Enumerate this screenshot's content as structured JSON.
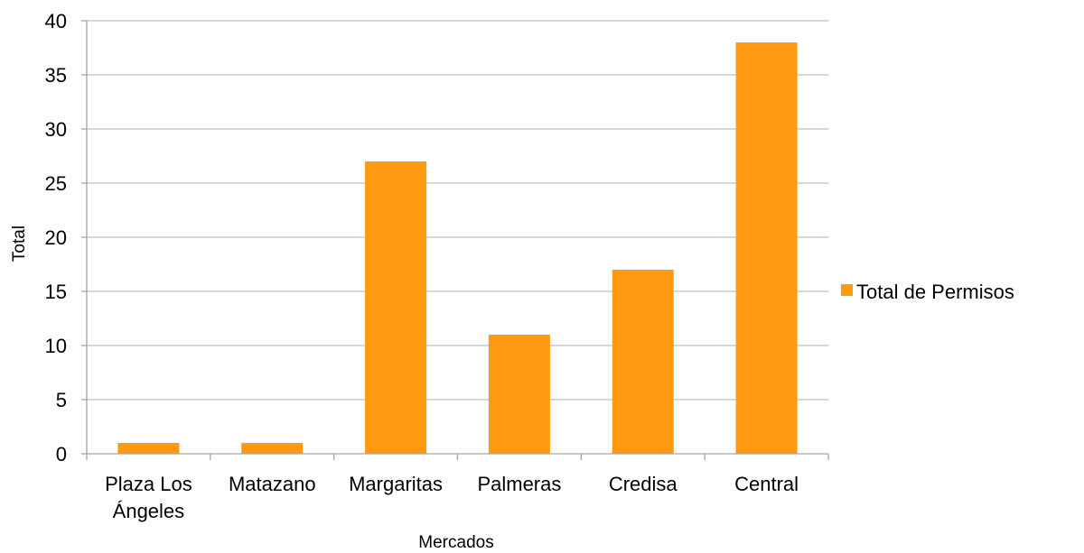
{
  "chart_data": {
    "type": "bar",
    "title": "",
    "xlabel": "Mercados",
    "ylabel": "Total",
    "categories": [
      "Plaza Los Ángeles",
      "Matazano",
      "Margaritas",
      "Palmeras",
      "Credisa",
      "Central"
    ],
    "category_lines": [
      [
        "Plaza Los",
        "Ángeles"
      ],
      [
        "Matazano"
      ],
      [
        "Margaritas"
      ],
      [
        "Palmeras"
      ],
      [
        "Credisa"
      ],
      [
        "Central"
      ]
    ],
    "series": [
      {
        "name": "Total de Permisos",
        "values": [
          1,
          1,
          27,
          11,
          17,
          38
        ],
        "color": "#FF9910"
      }
    ],
    "ylim": [
      0,
      40
    ],
    "yticks": [
      0,
      5,
      10,
      15,
      20,
      25,
      30,
      35,
      40
    ],
    "grid": true,
    "grid_color": "#BFBFBF",
    "axis_color": "#A6A6A6",
    "legend_position": "right"
  }
}
